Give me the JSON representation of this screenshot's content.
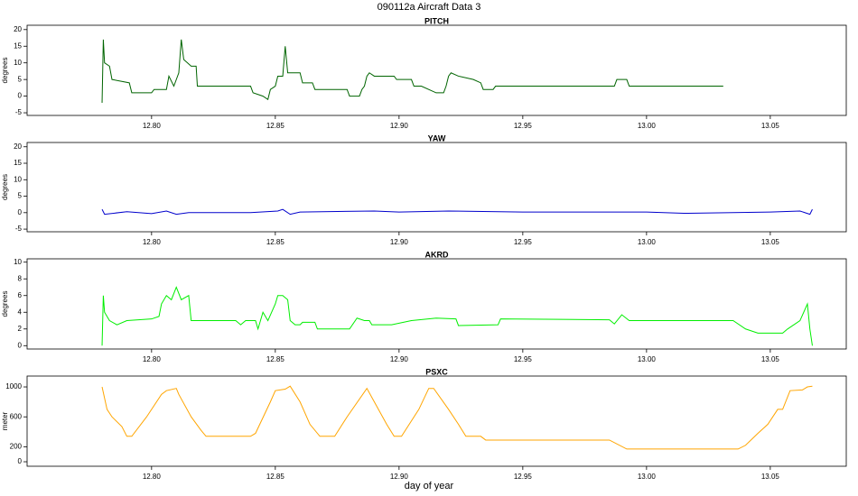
{
  "title": "090112a    Aircraft Data 3",
  "xlabel": "day of year",
  "chart_data": [
    {
      "type": "line",
      "title": "PITCH",
      "ylabel": "degrees",
      "color": "#006400",
      "xlim": [
        12.7497,
        13.0807
      ],
      "ylim": [
        -5.8,
        21.3
      ],
      "xticks": [
        {
          "value": 12.8,
          "label": "12.80"
        },
        12.85,
        {
          "value": 12.9,
          "label": "12.90"
        },
        12.95,
        {
          "value": 13,
          "label": "13.00"
        },
        13.05
      ],
      "yticks": [
        -5,
        0,
        5,
        10,
        15,
        20
      ],
      "x": [
        12.78,
        12.7805,
        12.781,
        12.783,
        12.784,
        12.791,
        12.792,
        12.8,
        12.801,
        12.806,
        12.807,
        12.809,
        12.811,
        12.812,
        12.813,
        12.816,
        12.818,
        12.8185,
        12.84,
        12.841,
        12.845,
        12.847,
        12.848,
        12.85,
        12.851,
        12.853,
        12.854,
        12.855,
        12.86,
        12.861,
        12.865,
        12.866,
        12.879,
        12.88,
        12.884,
        12.885,
        12.886,
        12.887,
        12.888,
        12.89,
        12.898,
        12.899,
        12.905,
        12.906,
        12.909,
        12.915,
        12.918,
        12.919,
        12.92,
        12.921,
        12.924,
        12.93,
        12.933,
        12.934,
        12.938,
        12.939,
        12.987,
        12.988,
        12.992,
        12.993,
        13.031
      ],
      "values": [
        -2,
        17,
        10,
        9,
        5,
        4,
        1,
        1,
        2,
        2,
        6,
        3,
        7,
        17,
        11,
        9,
        9,
        3,
        3,
        1,
        0,
        -1,
        2,
        3,
        6,
        6,
        15,
        7,
        7,
        4,
        4,
        2,
        2,
        0,
        0,
        2,
        3,
        6,
        7,
        6,
        6,
        5,
        5,
        3,
        3,
        1,
        1,
        3,
        6,
        7,
        6,
        5,
        4,
        2,
        2,
        3,
        3,
        5,
        5,
        3,
        3
      ]
    },
    {
      "type": "line",
      "title": "YAW",
      "ylabel": "degrees",
      "color": "#0000cc",
      "xlim": [
        12.7497,
        13.0807
      ],
      "ylim": [
        -5.8,
        21.3
      ],
      "xticks": [
        {
          "value": 12.8,
          "label": "12.80"
        },
        12.85,
        {
          "value": 12.9,
          "label": "12.90"
        },
        12.95,
        {
          "value": 13,
          "label": "13.00"
        },
        13.05
      ],
      "yticks": [
        -5,
        0,
        5,
        10,
        15,
        20
      ],
      "x": [
        12.78,
        12.781,
        12.79,
        12.8,
        12.806,
        12.81,
        12.815,
        12.84,
        12.851,
        12.853,
        12.856,
        12.86,
        12.89,
        12.9,
        12.92,
        12.95,
        13.0,
        13.015,
        13.05,
        13.062,
        13.066,
        13.067
      ],
      "values": [
        1,
        -0.5,
        0.3,
        -0.3,
        0.5,
        -0.5,
        0,
        0,
        0.5,
        1,
        -0.5,
        0.2,
        0.5,
        0.2,
        0.5,
        0.2,
        0.2,
        -0.2,
        0.2,
        0.5,
        -0.5,
        1
      ]
    },
    {
      "type": "line",
      "title": "AKRD",
      "ylabel": "degrees",
      "color": "#00ee00",
      "xlim": [
        12.7497,
        13.0807
      ],
      "ylim": [
        -0.4,
        10.4
      ],
      "xticks": [
        {
          "value": 12.8,
          "label": "12.80"
        },
        12.85,
        {
          "value": 12.9,
          "label": "12.90"
        },
        12.95,
        {
          "value": 13,
          "label": "13.00"
        },
        13.05
      ],
      "yticks": [
        0,
        2,
        4,
        6,
        8,
        10
      ],
      "x": [
        12.78,
        12.7805,
        12.781,
        12.783,
        12.786,
        12.79,
        12.8,
        12.803,
        12.804,
        12.806,
        12.808,
        12.81,
        12.812,
        12.815,
        12.816,
        12.834,
        12.836,
        12.838,
        12.842,
        12.843,
        12.845,
        12.847,
        12.85,
        12.851,
        12.853,
        12.855,
        12.856,
        12.858,
        12.86,
        12.861,
        12.866,
        12.867,
        12.88,
        12.883,
        12.886,
        12.888,
        12.889,
        12.897,
        12.905,
        12.915,
        12.923,
        12.924,
        12.94,
        12.941,
        12.985,
        12.987,
        12.99,
        12.993,
        13.035,
        13.04,
        13.045,
        13.055,
        13.057,
        13.062,
        13.065,
        13.066,
        13.067
      ],
      "values": [
        0,
        6,
        4,
        3,
        2.5,
        3,
        3.2,
        3.5,
        5,
        6,
        5.5,
        7,
        5.5,
        6,
        3,
        3,
        2.5,
        3,
        3,
        2,
        4,
        3,
        5,
        6,
        6,
        5.5,
        3,
        2.5,
        2.5,
        2.8,
        2.8,
        2,
        2,
        3.3,
        3,
        3,
        2.5,
        2.5,
        3,
        3.3,
        3.2,
        2.4,
        2.5,
        3.2,
        3.1,
        2.6,
        3.7,
        3,
        3,
        2,
        1.5,
        1.5,
        2,
        3,
        5,
        2,
        0
      ]
    },
    {
      "type": "line",
      "title": "PSXC",
      "ylabel": "meter",
      "color": "#ffa500",
      "xlim": [
        12.7497,
        13.0807
      ],
      "ylim": [
        -60,
        1145
      ],
      "xticks": [
        {
          "value": 12.8,
          "label": "12.80"
        },
        12.85,
        {
          "value": 12.9,
          "label": "12.90"
        },
        12.95,
        {
          "value": 13,
          "label": "13.00"
        },
        13.05
      ],
      "yticks": [
        0,
        200,
        600,
        1000
      ],
      "x": [
        12.78,
        12.782,
        12.784,
        12.788,
        12.79,
        12.792,
        12.798,
        12.804,
        12.806,
        12.81,
        12.811,
        12.816,
        12.82,
        12.822,
        12.84,
        12.842,
        12.848,
        12.85,
        12.854,
        12.856,
        12.86,
        12.864,
        12.868,
        12.874,
        12.879,
        12.887,
        12.89,
        12.895,
        12.898,
        12.901,
        12.908,
        12.912,
        12.914,
        12.92,
        12.924,
        12.927,
        12.933,
        12.935,
        12.985,
        12.992,
        13.037,
        13.04,
        13.045,
        13.049,
        13.053,
        13.055,
        13.058,
        13.063,
        13.065,
        13.067
      ],
      "values": [
        1000,
        700,
        600,
        470,
        340,
        340,
        600,
        900,
        950,
        980,
        900,
        600,
        420,
        340,
        340,
        380,
        800,
        950,
        970,
        1010,
        800,
        500,
        340,
        340,
        600,
        980,
        800,
        500,
        340,
        340,
        700,
        980,
        980,
        700,
        500,
        340,
        340,
        290,
        290,
        170,
        170,
        220,
        380,
        500,
        700,
        700,
        950,
        960,
        1000,
        1010
      ]
    }
  ]
}
